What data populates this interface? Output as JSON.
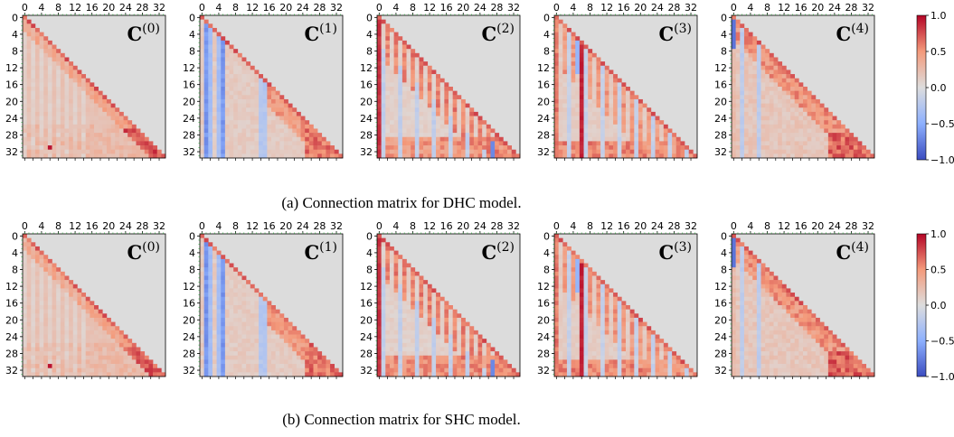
{
  "chart_data": [
    {
      "type": "heatmap",
      "caption": "(a) Connection matrix for DHC model.",
      "panels": [
        {
          "title": "C",
          "superscript": "(0)"
        },
        {
          "title": "C",
          "superscript": "(1)"
        },
        {
          "title": "C",
          "superscript": "(2)"
        },
        {
          "title": "C",
          "superscript": "(3)"
        },
        {
          "title": "C",
          "superscript": "(4)"
        }
      ],
      "x_ticks": [
        "0",
        "4",
        "8",
        "12",
        "16",
        "20",
        "24",
        "28",
        "32"
      ],
      "y_ticks": [
        "0",
        "4",
        "8",
        "12",
        "16",
        "20",
        "24",
        "28",
        "32"
      ],
      "size": 34,
      "colorbar": {
        "ticks": [
          "1.0",
          "0.5",
          "0.0",
          "−0.5",
          "−1.0"
        ],
        "values": [
          1.0,
          0.5,
          0.0,
          -0.5,
          -1.0
        ],
        "vmin": -1.0,
        "vmax": 1.0,
        "colormap": "coolwarm"
      }
    },
    {
      "type": "heatmap",
      "caption": "(b) Connection matrix for SHC model.",
      "panels": [
        {
          "title": "C",
          "superscript": "(0)"
        },
        {
          "title": "C",
          "superscript": "(1)"
        },
        {
          "title": "C",
          "superscript": "(2)"
        },
        {
          "title": "C",
          "superscript": "(3)"
        },
        {
          "title": "C",
          "superscript": "(4)"
        }
      ],
      "x_ticks": [
        "0",
        "4",
        "8",
        "12",
        "16",
        "20",
        "24",
        "28",
        "32"
      ],
      "y_ticks": [
        "0",
        "4",
        "8",
        "12",
        "16",
        "20",
        "24",
        "28",
        "32"
      ],
      "size": 34,
      "colorbar": {
        "ticks": [
          "1.0",
          "0.5",
          "0.0",
          "−0.5",
          "−1.0"
        ],
        "values": [
          1.0,
          0.5,
          0.0,
          -0.5,
          -1.0
        ],
        "vmin": -1.0,
        "vmax": 1.0,
        "colormap": "coolwarm"
      }
    }
  ],
  "colors": {
    "masked": "#dcdcdc",
    "cmap_low": "#3b4cc0",
    "cmap_mid": "#dddddd",
    "cmap_high": "#b40426"
  }
}
